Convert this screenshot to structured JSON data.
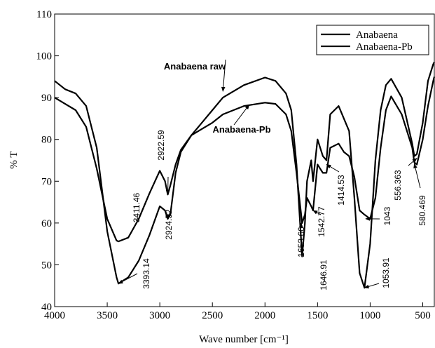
{
  "chart_data": {
    "type": "line",
    "xlabel": "Wave number [cm⁻¹]",
    "ylabel": "% T",
    "x": [
      4000,
      3900,
      3800,
      3700,
      3600,
      3500,
      3411,
      3393,
      3300,
      3200,
      3100,
      3000,
      2950,
      2924,
      2900,
      2850,
      2800,
      2700,
      2600,
      2500,
      2400,
      2200,
      2000,
      1900,
      1800,
      1750,
      1700,
      1647,
      1620,
      1600,
      1560,
      1543,
      1500,
      1450,
      1415,
      1380,
      1300,
      1250,
      1200,
      1150,
      1100,
      1054,
      1000,
      950,
      900,
      850,
      800,
      700,
      600,
      580,
      556,
      500,
      450,
      400,
      390
    ],
    "series": [
      {
        "name": "Anabaena",
        "color": "#000000",
        "values": [
          94,
          92,
          91,
          88,
          78,
          58,
          47,
          45.5,
          47,
          51,
          57,
          64,
          63,
          61,
          62,
          72,
          77,
          81,
          84,
          87,
          90,
          93,
          94.8,
          94,
          91,
          87,
          74,
          52,
          60,
          70,
          75,
          70,
          80,
          76,
          75,
          86,
          88,
          85,
          82,
          66,
          48,
          44.5,
          55,
          75,
          87,
          93,
          94.5,
          90,
          79,
          76,
          76.5,
          84,
          94,
          98,
          98.5
        ]
      },
      {
        "name": "Anabaena-Pb",
        "color": "#000000",
        "values": [
          90,
          88.5,
          87,
          83,
          73,
          61,
          55.8,
          55.6,
          56.5,
          61,
          67,
          72.5,
          70,
          66.8,
          69,
          74,
          77.5,
          81,
          82.5,
          84,
          86,
          88,
          88.8,
          88.5,
          86,
          82,
          72,
          60,
          62,
          66,
          64,
          63,
          74,
          72,
          72,
          78,
          79,
          77,
          76,
          71,
          63,
          62,
          61,
          66,
          78,
          87,
          90.3,
          86,
          78,
          74.5,
          74,
          80,
          88,
          94,
          95
        ]
      }
    ],
    "xlim": [
      4000,
      390
    ],
    "ylim": [
      40,
      110
    ],
    "xticks": [
      4000,
      3500,
      3000,
      2500,
      2000,
      1500,
      1000,
      500
    ],
    "yticks": [
      40,
      50,
      60,
      70,
      80,
      90,
      100,
      110
    ],
    "grid": false,
    "legend": "upper right",
    "annotations": [
      {
        "text": "Anabaena raw",
        "x": 2400,
        "y": 91.5
      },
      {
        "text": "Anabaena-Pb",
        "x": 2150,
        "y": 88.3
      },
      {
        "text": "3411.46",
        "x": 3411,
        "y": 55.8
      },
      {
        "text": "2922.59",
        "x": 2924,
        "y": 66.8
      },
      {
        "text": "2924.52",
        "x": 2924,
        "y": 61
      },
      {
        "text": "3393.14",
        "x": 3393,
        "y": 45.5
      },
      {
        "text": "1653.66",
        "x": 1654,
        "y": 60
      },
      {
        "text": "1646.91",
        "x": 1647,
        "y": 52
      },
      {
        "text": "1542.77",
        "x": 1543,
        "y": 63
      },
      {
        "text": "1414.53",
        "x": 1415,
        "y": 74
      },
      {
        "text": "1043",
        "x": 1043,
        "y": 61
      },
      {
        "text": "1053.91",
        "x": 1054,
        "y": 44.5
      },
      {
        "text": "556.363",
        "x": 556,
        "y": 75.5
      },
      {
        "text": "580.469",
        "x": 580,
        "y": 74.2
      }
    ]
  }
}
